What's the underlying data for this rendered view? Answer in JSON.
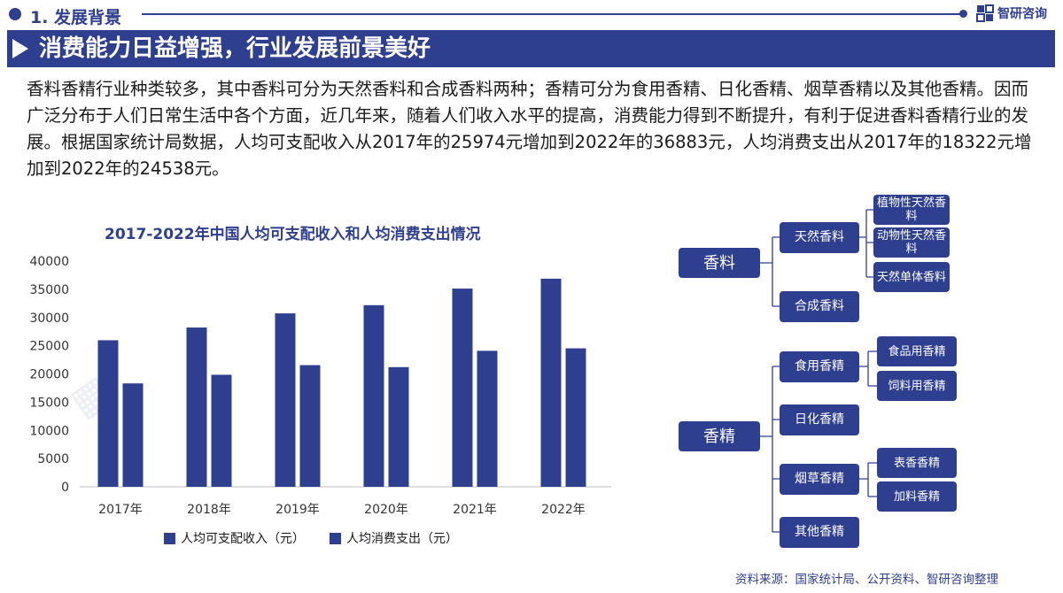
{
  "header": {
    "section_title": "1. 发展背景",
    "brand_name": "智研咨询",
    "banner_title": "消费能力日益增强，行业发展前景美好"
  },
  "intro": "香料香精行业种类较多，其中香料可分为天然香料和合成香料两种；香精可分为食用香精、日化香精、烟草香精以及其他香精。因而广泛分布于人们日常生活中各个方面，近几年来，随着人们收入水平的提高，消费能力得到不断提升，有利于促进香料香精行业的发展。根据国家统计局数据，人均可支配收入从2017年的25974元增加到2022年的36883元，人均消费支出从2017年的18322元增加到2022年的24538元。",
  "chart_data": {
    "type": "bar",
    "title": "2017-2022年中国人均可支配收入和人均消费支出情况",
    "categories": [
      "2017年",
      "2018年",
      "2019年",
      "2020年",
      "2021年",
      "2022年"
    ],
    "series": [
      {
        "name": "人均可支配收入（元）",
        "values": [
          25974,
          28228,
          30733,
          32189,
          35128,
          36883
        ]
      },
      {
        "name": "人均消费支出（元）",
        "values": [
          18322,
          19853,
          21559,
          21210,
          24100,
          24538
        ]
      }
    ],
    "ylim": [
      0,
      40000
    ],
    "yticks": [
      "0",
      "5000",
      "10000",
      "15000",
      "20000",
      "25000",
      "30000",
      "35000",
      "40000"
    ],
    "xlabel": "",
    "ylabel": "",
    "grid": false,
    "legend": "bottom",
    "colors": {
      "bar": "#2f3f8f",
      "accent": "#2f3f8f"
    }
  },
  "tree": {
    "root1": "香料",
    "natural": "天然香料",
    "natural_children": [
      "植物性天然香料",
      "动物性天然香料",
      "天然单体香料"
    ],
    "synthetic": "合成香料",
    "root2": "香精",
    "food": "食用香精",
    "food_children": [
      "食品用香精",
      "饲料用香精"
    ],
    "daily": "日化香精",
    "tobacco": "烟草香精",
    "tobacco_children": [
      "表香香精",
      "加料香精"
    ],
    "other": "其他香精"
  },
  "source": "资料来源：国家统计局、公开资料、智研咨询整理"
}
